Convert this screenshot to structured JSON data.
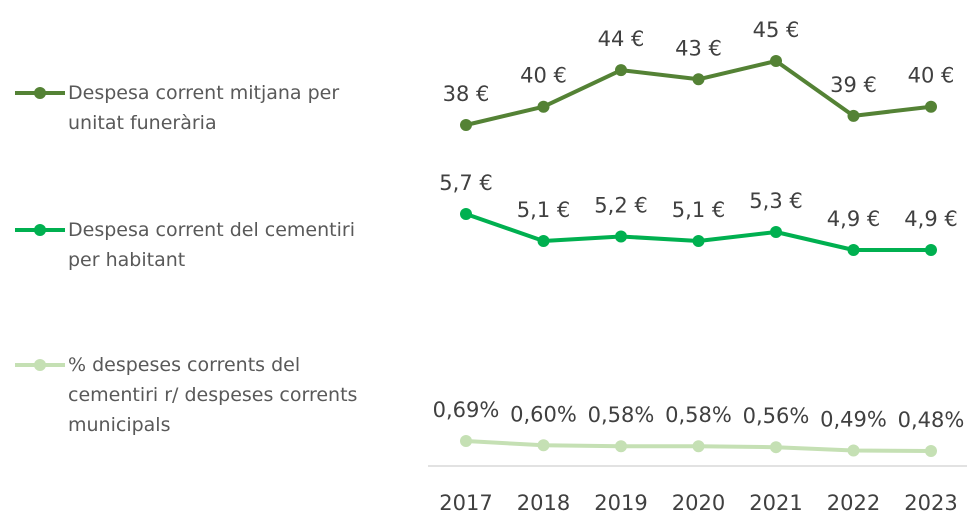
{
  "chart_data": {
    "type": "line",
    "categories": [
      "2017",
      "2018",
      "2019",
      "2020",
      "2021",
      "2022",
      "2023"
    ],
    "series": [
      {
        "name": "Despesa corrent mitjana per unitat funerària",
        "color": "#548235",
        "values": [
          38,
          40,
          44,
          43,
          45,
          39,
          40
        ],
        "value_labels": [
          "38 €",
          "40 €",
          "44 €",
          "43 €",
          "45 €",
          "39 €",
          "40 €"
        ]
      },
      {
        "name": "Despesa corrent del cementiri per habitant",
        "color": "#00b050",
        "values": [
          5.7,
          5.1,
          5.2,
          5.1,
          5.3,
          4.9,
          4.9
        ],
        "value_labels": [
          "5,7 €",
          "5,1 €",
          "5,2 €",
          "5,1 €",
          "5,3 €",
          "4,9 €",
          "4,9 €"
        ]
      },
      {
        "name": "% despeses corrents del cementiri r/ despeses corrents municipals",
        "color": "#c5e0b4",
        "values": [
          0.69,
          0.6,
          0.58,
          0.58,
          0.56,
          0.49,
          0.48
        ],
        "value_labels": [
          "0,69%",
          "0,60%",
          "0,58%",
          "0,58%",
          "0,56%",
          "0,49%",
          "0,48%"
        ]
      }
    ]
  }
}
